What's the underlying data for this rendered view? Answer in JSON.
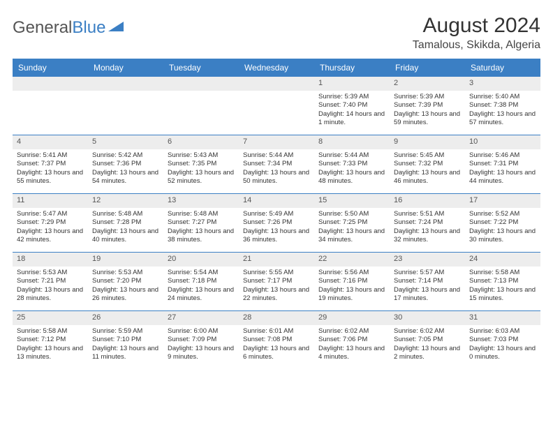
{
  "logo": {
    "text_gray": "General",
    "text_blue": "Blue"
  },
  "title": "August 2024",
  "location": "Tamalous, Skikda, Algeria",
  "colors": {
    "header_bar": "#3b7fc4",
    "date_bg": "#ededed",
    "separator": "#3b7fc4",
    "text": "#333333",
    "background": "#ffffff"
  },
  "day_names": [
    "Sunday",
    "Monday",
    "Tuesday",
    "Wednesday",
    "Thursday",
    "Friday",
    "Saturday"
  ],
  "weeks": [
    [
      {
        "date": "",
        "lines": []
      },
      {
        "date": "",
        "lines": []
      },
      {
        "date": "",
        "lines": []
      },
      {
        "date": "",
        "lines": []
      },
      {
        "date": "1",
        "lines": [
          "Sunrise: 5:39 AM",
          "Sunset: 7:40 PM",
          "Daylight: 14 hours and 1 minute."
        ]
      },
      {
        "date": "2",
        "lines": [
          "Sunrise: 5:39 AM",
          "Sunset: 7:39 PM",
          "Daylight: 13 hours and 59 minutes."
        ]
      },
      {
        "date": "3",
        "lines": [
          "Sunrise: 5:40 AM",
          "Sunset: 7:38 PM",
          "Daylight: 13 hours and 57 minutes."
        ]
      }
    ],
    [
      {
        "date": "4",
        "lines": [
          "Sunrise: 5:41 AM",
          "Sunset: 7:37 PM",
          "Daylight: 13 hours and 55 minutes."
        ]
      },
      {
        "date": "5",
        "lines": [
          "Sunrise: 5:42 AM",
          "Sunset: 7:36 PM",
          "Daylight: 13 hours and 54 minutes."
        ]
      },
      {
        "date": "6",
        "lines": [
          "Sunrise: 5:43 AM",
          "Sunset: 7:35 PM",
          "Daylight: 13 hours and 52 minutes."
        ]
      },
      {
        "date": "7",
        "lines": [
          "Sunrise: 5:44 AM",
          "Sunset: 7:34 PM",
          "Daylight: 13 hours and 50 minutes."
        ]
      },
      {
        "date": "8",
        "lines": [
          "Sunrise: 5:44 AM",
          "Sunset: 7:33 PM",
          "Daylight: 13 hours and 48 minutes."
        ]
      },
      {
        "date": "9",
        "lines": [
          "Sunrise: 5:45 AM",
          "Sunset: 7:32 PM",
          "Daylight: 13 hours and 46 minutes."
        ]
      },
      {
        "date": "10",
        "lines": [
          "Sunrise: 5:46 AM",
          "Sunset: 7:31 PM",
          "Daylight: 13 hours and 44 minutes."
        ]
      }
    ],
    [
      {
        "date": "11",
        "lines": [
          "Sunrise: 5:47 AM",
          "Sunset: 7:29 PM",
          "Daylight: 13 hours and 42 minutes."
        ]
      },
      {
        "date": "12",
        "lines": [
          "Sunrise: 5:48 AM",
          "Sunset: 7:28 PM",
          "Daylight: 13 hours and 40 minutes."
        ]
      },
      {
        "date": "13",
        "lines": [
          "Sunrise: 5:48 AM",
          "Sunset: 7:27 PM",
          "Daylight: 13 hours and 38 minutes."
        ]
      },
      {
        "date": "14",
        "lines": [
          "Sunrise: 5:49 AM",
          "Sunset: 7:26 PM",
          "Daylight: 13 hours and 36 minutes."
        ]
      },
      {
        "date": "15",
        "lines": [
          "Sunrise: 5:50 AM",
          "Sunset: 7:25 PM",
          "Daylight: 13 hours and 34 minutes."
        ]
      },
      {
        "date": "16",
        "lines": [
          "Sunrise: 5:51 AM",
          "Sunset: 7:24 PM",
          "Daylight: 13 hours and 32 minutes."
        ]
      },
      {
        "date": "17",
        "lines": [
          "Sunrise: 5:52 AM",
          "Sunset: 7:22 PM",
          "Daylight: 13 hours and 30 minutes."
        ]
      }
    ],
    [
      {
        "date": "18",
        "lines": [
          "Sunrise: 5:53 AM",
          "Sunset: 7:21 PM",
          "Daylight: 13 hours and 28 minutes."
        ]
      },
      {
        "date": "19",
        "lines": [
          "Sunrise: 5:53 AM",
          "Sunset: 7:20 PM",
          "Daylight: 13 hours and 26 minutes."
        ]
      },
      {
        "date": "20",
        "lines": [
          "Sunrise: 5:54 AM",
          "Sunset: 7:18 PM",
          "Daylight: 13 hours and 24 minutes."
        ]
      },
      {
        "date": "21",
        "lines": [
          "Sunrise: 5:55 AM",
          "Sunset: 7:17 PM",
          "Daylight: 13 hours and 22 minutes."
        ]
      },
      {
        "date": "22",
        "lines": [
          "Sunrise: 5:56 AM",
          "Sunset: 7:16 PM",
          "Daylight: 13 hours and 19 minutes."
        ]
      },
      {
        "date": "23",
        "lines": [
          "Sunrise: 5:57 AM",
          "Sunset: 7:14 PM",
          "Daylight: 13 hours and 17 minutes."
        ]
      },
      {
        "date": "24",
        "lines": [
          "Sunrise: 5:58 AM",
          "Sunset: 7:13 PM",
          "Daylight: 13 hours and 15 minutes."
        ]
      }
    ],
    [
      {
        "date": "25",
        "lines": [
          "Sunrise: 5:58 AM",
          "Sunset: 7:12 PM",
          "Daylight: 13 hours and 13 minutes."
        ]
      },
      {
        "date": "26",
        "lines": [
          "Sunrise: 5:59 AM",
          "Sunset: 7:10 PM",
          "Daylight: 13 hours and 11 minutes."
        ]
      },
      {
        "date": "27",
        "lines": [
          "Sunrise: 6:00 AM",
          "Sunset: 7:09 PM",
          "Daylight: 13 hours and 9 minutes."
        ]
      },
      {
        "date": "28",
        "lines": [
          "Sunrise: 6:01 AM",
          "Sunset: 7:08 PM",
          "Daylight: 13 hours and 6 minutes."
        ]
      },
      {
        "date": "29",
        "lines": [
          "Sunrise: 6:02 AM",
          "Sunset: 7:06 PM",
          "Daylight: 13 hours and 4 minutes."
        ]
      },
      {
        "date": "30",
        "lines": [
          "Sunrise: 6:02 AM",
          "Sunset: 7:05 PM",
          "Daylight: 13 hours and 2 minutes."
        ]
      },
      {
        "date": "31",
        "lines": [
          "Sunrise: 6:03 AM",
          "Sunset: 7:03 PM",
          "Daylight: 13 hours and 0 minutes."
        ]
      }
    ]
  ]
}
